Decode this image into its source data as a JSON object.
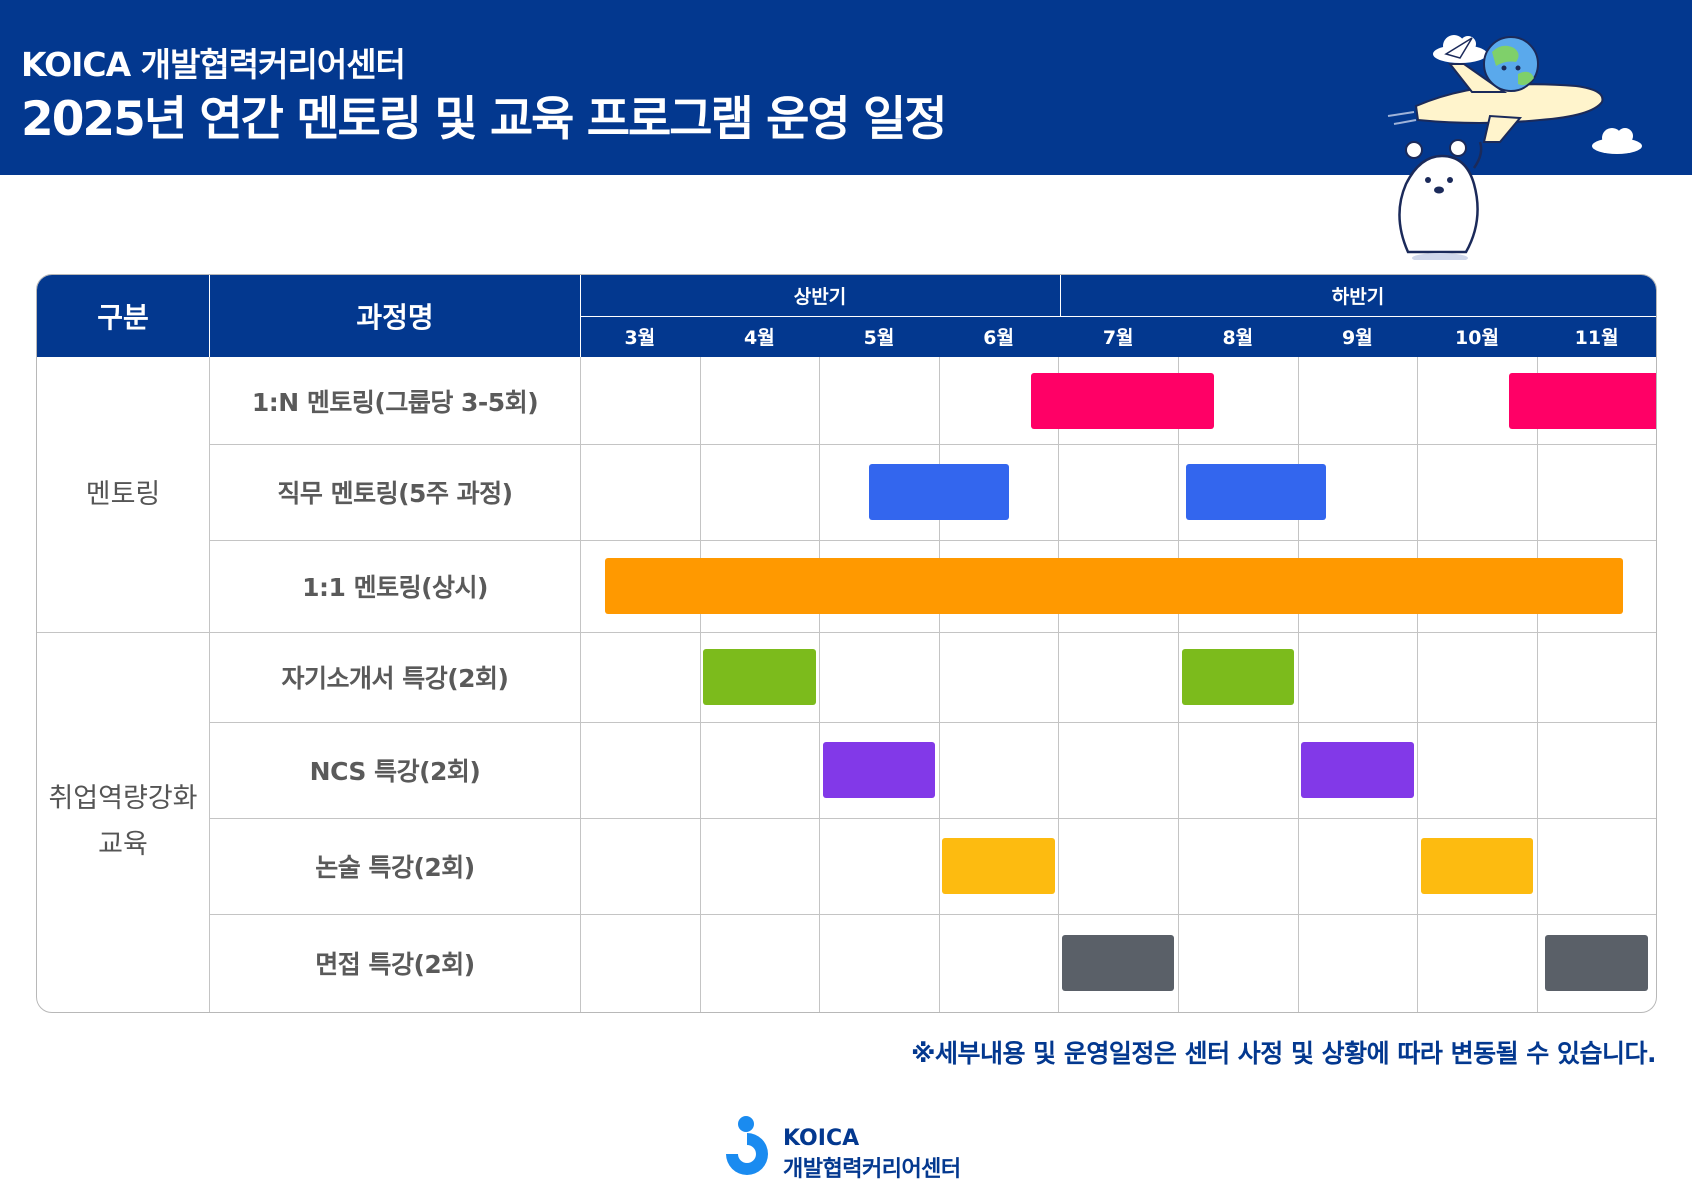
{
  "header": {
    "org": "KOICA 개발협력커리어센터",
    "title": "2025년 연간 멘토링 및 교육 프로그램 운영 일정"
  },
  "table": {
    "col_category": "구분",
    "col_program": "과정명",
    "first_half": "상반기",
    "second_half": "하반기",
    "months": [
      "3월",
      "4월",
      "5월",
      "6월",
      "7월",
      "8월",
      "9월",
      "10월",
      "11월"
    ],
    "groups": [
      {
        "label": "멘토링"
      },
      {
        "label_line1": "취업역량강화",
        "label_line2": "교육"
      }
    ],
    "rows": [
      {
        "label": "1:N 멘토링(그룹당 3-5회)",
        "color": "#ff0066",
        "periods": [
          [
            3.77,
            5.3
          ],
          [
            7.77,
            9.3
          ]
        ]
      },
      {
        "label": "직무 멘토링(5주 과정)",
        "color": "#3366ee",
        "periods": [
          [
            2.42,
            3.59
          ],
          [
            5.07,
            6.24
          ]
        ]
      },
      {
        "label": "1:1 멘토링(상시)",
        "color": "#ff9900",
        "periods": [
          [
            0.21,
            8.72
          ]
        ]
      },
      {
        "label": "자기소개서 특강(2회)",
        "color": "#7cbb1c",
        "periods": [
          [
            1.03,
            1.97
          ],
          [
            5.03,
            5.97
          ]
        ]
      },
      {
        "label": "NCS 특강(2회)",
        "color": "#8239e8",
        "periods": [
          [
            2.03,
            2.97
          ],
          [
            6.03,
            6.97
          ]
        ]
      },
      {
        "label": "논술 특강(2회)",
        "color": "#fdbb10",
        "periods": [
          [
            3.03,
            3.97
          ],
          [
            7.03,
            7.97
          ]
        ]
      },
      {
        "label": "면접 특강(2회)",
        "color": "#5a6068",
        "periods": [
          [
            4.03,
            4.97
          ],
          [
            8.07,
            8.93
          ]
        ]
      }
    ]
  },
  "note": "※세부내용 및 운영일정은 센터 사정 및 상황에 따라 변동될 수 있습니다.",
  "footer": {
    "logo_line1": "KOICA",
    "logo_line2": "개발협력커리어센터"
  },
  "colors": {
    "brand_navy": "#03388f",
    "footer_logo_blue": "#1a8bf0"
  },
  "decorations": [
    "cloud-icon",
    "paper-plane-icon",
    "globe-icon",
    "airplane-icon",
    "chick-mascot",
    "bear-mascot"
  ]
}
